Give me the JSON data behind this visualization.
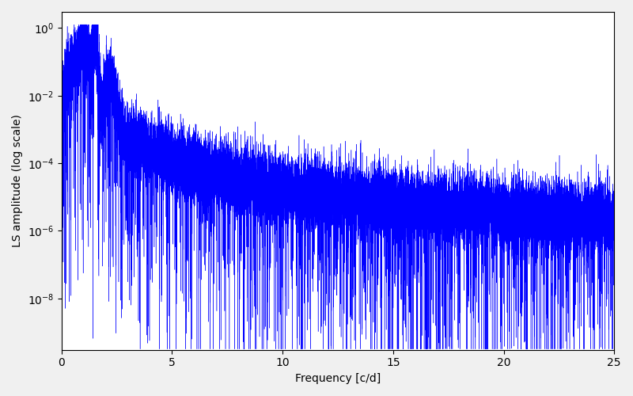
{
  "xlabel": "Frequency [c/d]",
  "ylabel": "LS amplitude (log scale)",
  "xlim": [
    0,
    25
  ],
  "ylim_bottom": 3e-10,
  "ylim_top": 3.0,
  "xticks": [
    0,
    5,
    10,
    15,
    20,
    25
  ],
  "line_color": "#0000ff",
  "linewidth": 0.3,
  "figsize": [
    8.0,
    5.0
  ],
  "dpi": 100,
  "n_points": 20000,
  "seed": 123
}
